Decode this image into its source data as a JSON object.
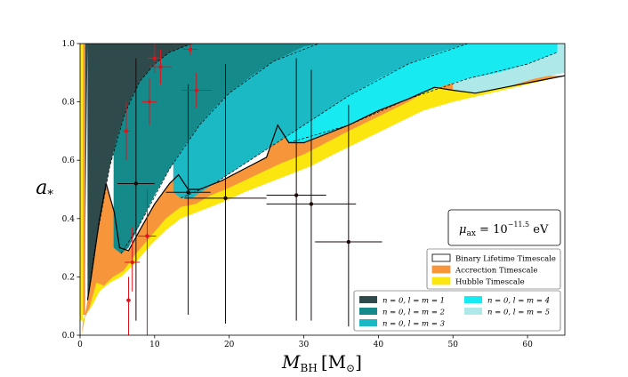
{
  "chart_data": {
    "type": "area",
    "title": "",
    "xlabel": "M_BH [M_⊙]",
    "xlabel_main": "M",
    "xlabel_sub": "BH",
    "xlabel_unit": "[M",
    "xlabel_unit_sub": "⊙",
    "xlabel_unit_close": "]",
    "ylabel": "a_*",
    "ylabel_main": "a",
    "ylabel_sub": "*",
    "xlim": [
      0,
      65
    ],
    "ylim": [
      0,
      1.0
    ],
    "xticks": [
      "0",
      "10",
      "20",
      "30",
      "40",
      "50",
      "60"
    ],
    "yticks": [
      "0.0",
      "0.2",
      "0.4",
      "0.6",
      "0.8",
      "1.0"
    ],
    "annotation": {
      "prefix": "μ",
      "sub": "ax",
      "mid": " = 10",
      "sup": "−11.5",
      "suffix": " eV"
    },
    "timescale_legend": [
      {
        "label": "Binary Lifetime Timescale",
        "color": "#ffffff"
      },
      {
        "label": "Accrection Timescale",
        "color": "#f7953b"
      },
      {
        "label": "Hubble Timescale",
        "color": "#fbe60f"
      }
    ],
    "mode_legend": [
      {
        "label": "n = 0,  l = m = 1",
        "color": "#2e4a4a"
      },
      {
        "label": "n = 0,  l = m = 2",
        "color": "#148a8a"
      },
      {
        "label": "n = 0,  l = m = 3",
        "color": "#1ab9c4"
      },
      {
        "label": "n = 0,  l = m = 4",
        "color": "#18eaf2"
      },
      {
        "label": "n = 0,  l = m = 5",
        "color": "#aee8e8"
      }
    ],
    "bands": [
      {
        "name": "l=m=1",
        "color": "#2e4a4a",
        "left_x": [
          [
            0.0,
            0.05
          ],
          [
            0.6,
            1.0
          ]
        ],
        "boundary": [
          [
            1.0,
            0.12
          ],
          [
            2.0,
            0.3
          ],
          [
            3,
            0.45
          ],
          [
            4,
            0.58
          ],
          [
            5,
            0.68
          ],
          [
            6,
            0.76
          ],
          [
            7,
            0.82
          ],
          [
            8,
            0.87
          ],
          [
            10,
            0.93
          ],
          [
            12,
            0.97
          ],
          [
            14,
            0.99
          ],
          [
            15,
            1.0
          ]
        ]
      },
      {
        "name": "l=m=2",
        "color": "#148a8a",
        "boundary": [
          [
            4.5,
            0.3
          ],
          [
            5.5,
            0.28
          ],
          [
            6.5,
            0.3
          ],
          [
            8,
            0.38
          ],
          [
            10,
            0.48
          ],
          [
            12,
            0.57
          ],
          [
            14,
            0.65
          ],
          [
            16,
            0.72
          ],
          [
            18,
            0.78
          ],
          [
            20,
            0.83
          ],
          [
            23,
            0.89
          ],
          [
            26,
            0.94
          ],
          [
            30,
            0.99
          ],
          [
            32,
            1.0
          ]
        ]
      },
      {
        "name": "l=m=3",
        "color": "#1ab9c4",
        "boundary": [
          [
            12.5,
            0.49
          ],
          [
            13.5,
            0.47
          ],
          [
            15,
            0.47
          ],
          [
            18,
            0.52
          ],
          [
            21,
            0.57
          ],
          [
            24,
            0.62
          ],
          [
            27,
            0.67
          ],
          [
            30,
            0.72
          ],
          [
            33,
            0.77
          ],
          [
            36,
            0.82
          ],
          [
            40,
            0.88
          ],
          [
            44,
            0.93
          ],
          [
            48,
            0.97
          ],
          [
            52,
            1.0
          ]
        ]
      },
      {
        "name": "l=m=4",
        "color": "#18eaf2",
        "boundary": [
          [
            26.5,
            0.7
          ],
          [
            28,
            0.66
          ],
          [
            30,
            0.66
          ],
          [
            33,
            0.69
          ],
          [
            36,
            0.72
          ],
          [
            40,
            0.77
          ],
          [
            44,
            0.81
          ],
          [
            48,
            0.85
          ],
          [
            52,
            0.88
          ],
          [
            56,
            0.9
          ],
          [
            60,
            0.93
          ],
          [
            63,
            0.96
          ],
          [
            64,
            0.97
          ]
        ]
      },
      {
        "name": "l=m=5",
        "color": "#aee8e8",
        "boundary": [
          [
            50,
            0.84
          ],
          [
            53,
            0.83
          ],
          [
            57,
            0.85
          ],
          [
            61,
            0.88
          ],
          [
            65,
            0.9
          ]
        ]
      }
    ],
    "solid_envelope": [
      [
        1.0,
        0.12
      ],
      [
        1.5,
        0.2
      ],
      [
        2.5,
        0.38
      ],
      [
        3.5,
        0.52
      ],
      [
        4.6,
        0.42
      ],
      [
        5.3,
        0.3
      ],
      [
        6.5,
        0.29
      ],
      [
        8,
        0.36
      ],
      [
        10,
        0.45
      ],
      [
        12,
        0.52
      ],
      [
        13.2,
        0.55
      ],
      [
        14.5,
        0.5
      ],
      [
        16,
        0.5
      ],
      [
        19,
        0.53
      ],
      [
        22,
        0.57
      ],
      [
        25,
        0.61
      ],
      [
        26.5,
        0.72
      ],
      [
        28,
        0.66
      ],
      [
        30,
        0.66
      ],
      [
        33,
        0.69
      ],
      [
        36,
        0.72
      ],
      [
        40,
        0.77
      ],
      [
        44,
        0.81
      ],
      [
        47.5,
        0.85
      ],
      [
        50,
        0.84
      ],
      [
        53,
        0.83
      ],
      [
        57,
        0.85
      ],
      [
        61,
        0.87
      ],
      [
        65,
        0.89
      ]
    ],
    "dashed_curves": [
      [
        [
          1.0,
          0.12
        ],
        [
          2,
          0.3
        ],
        [
          4,
          0.58
        ],
        [
          6,
          0.76
        ],
        [
          8,
          0.87
        ],
        [
          10,
          0.93
        ],
        [
          12,
          0.97
        ],
        [
          15,
          1.0
        ]
      ],
      [
        [
          5.5,
          0.28
        ],
        [
          8,
          0.38
        ],
        [
          12,
          0.57
        ],
        [
          16,
          0.72
        ],
        [
          20,
          0.83
        ],
        [
          26,
          0.94
        ],
        [
          32,
          1.0
        ]
      ],
      [
        [
          13.5,
          0.47
        ],
        [
          18,
          0.52
        ],
        [
          24,
          0.62
        ],
        [
          30,
          0.72
        ],
        [
          36,
          0.82
        ],
        [
          44,
          0.93
        ],
        [
          52,
          1.0
        ]
      ],
      [
        [
          28,
          0.66
        ],
        [
          36,
          0.72
        ],
        [
          44,
          0.81
        ],
        [
          52,
          0.88
        ],
        [
          60,
          0.93
        ],
        [
          64,
          0.97
        ]
      ]
    ],
    "accretion_lower": [
      [
        0.2,
        0.0
      ],
      [
        0.4,
        0.05
      ],
      [
        1.2,
        0.09
      ],
      [
        2.2,
        0.18
      ],
      [
        3.2,
        0.17
      ],
      [
        4.4,
        0.2
      ],
      [
        5.8,
        0.22
      ],
      [
        7.5,
        0.28
      ],
      [
        9.5,
        0.34
      ],
      [
        11.5,
        0.4
      ],
      [
        13.5,
        0.44
      ],
      [
        15.5,
        0.45
      ],
      [
        17.5,
        0.48
      ],
      [
        19.5,
        0.5
      ],
      [
        22,
        0.53
      ],
      [
        24.5,
        0.56
      ],
      [
        27,
        0.59
      ],
      [
        30,
        0.62
      ],
      [
        33,
        0.66
      ],
      [
        36,
        0.7
      ],
      [
        40,
        0.75
      ],
      [
        44,
        0.8
      ],
      [
        48,
        0.86
      ],
      [
        52,
        0.89
      ]
    ],
    "hubble_lower": [
      [
        0.3,
        0.0
      ],
      [
        0.5,
        0.06
      ],
      [
        1.6,
        0.1
      ],
      [
        2.6,
        0.15
      ],
      [
        4,
        0.18
      ],
      [
        5.5,
        0.2
      ],
      [
        7.5,
        0.25
      ],
      [
        9.5,
        0.31
      ],
      [
        11.5,
        0.36
      ],
      [
        13.5,
        0.4
      ],
      [
        15.5,
        0.42
      ],
      [
        17.5,
        0.44
      ],
      [
        19.5,
        0.46
      ],
      [
        22,
        0.49
      ],
      [
        25,
        0.52
      ],
      [
        28,
        0.55
      ],
      [
        31,
        0.58
      ],
      [
        34,
        0.62
      ],
      [
        38,
        0.67
      ],
      [
        42,
        0.72
      ],
      [
        46,
        0.77
      ],
      [
        50,
        0.8
      ]
    ],
    "black_points": [
      {
        "x": 7.5,
        "y": 0.52,
        "xerr": [
          2.5,
          2.5
        ],
        "yerr": [
          0.47,
          0.43
        ]
      },
      {
        "x": 14.5,
        "y": 0.49,
        "xerr": [
          3.0,
          3.0
        ],
        "yerr": [
          0.42,
          0.37
        ]
      },
      {
        "x": 19.5,
        "y": 0.47,
        "xerr": [
          5.5,
          5.5
        ],
        "yerr": [
          0.43,
          0.46
        ]
      },
      {
        "x": 29,
        "y": 0.48,
        "xerr": [
          4.0,
          4.0
        ],
        "yerr": [
          0.43,
          0.47
        ]
      },
      {
        "x": 31,
        "y": 0.45,
        "xerr": [
          6.0,
          6.0
        ],
        "yerr": [
          0.4,
          0.46
        ]
      },
      {
        "x": 36,
        "y": 0.32,
        "xerr": [
          4.5,
          4.5
        ],
        "yerr": [
          0.29,
          0.47
        ]
      }
    ],
    "red_points": [
      {
        "x": 6.5,
        "y": 0.12,
        "xerr": [
          0.3,
          0.3
        ],
        "yerr": [
          0.12,
          0.08
        ]
      },
      {
        "x": 7.0,
        "y": 0.25,
        "xerr": [
          1.0,
          1.0
        ],
        "yerr": [
          0.1,
          0.12
        ]
      },
      {
        "x": 9.0,
        "y": 0.34,
        "xerr": [
          1.2,
          1.2
        ],
        "yerr": [
          0.34,
          0.16
        ]
      },
      {
        "x": 6.2,
        "y": 0.7,
        "xerr": [
          0.5,
          0.5
        ],
        "yerr": [
          0.1,
          0.1
        ]
      },
      {
        "x": 9.3,
        "y": 0.8,
        "xerr": [
          1.0,
          1.0
        ],
        "yerr": [
          0.08,
          0.08
        ]
      },
      {
        "x": 10.0,
        "y": 0.95,
        "xerr": [
          1.0,
          1.0
        ],
        "yerr": [
          0.05,
          0.05
        ]
      },
      {
        "x": 10.8,
        "y": 0.92,
        "xerr": [
          1.5,
          1.5
        ],
        "yerr": [
          0.06,
          0.06
        ]
      },
      {
        "x": 14.8,
        "y": 0.98,
        "xerr": [
          1.0,
          1.0
        ],
        "yerr": [
          0.02,
          0.02
        ]
      },
      {
        "x": 15.6,
        "y": 0.84,
        "xerr": [
          2.0,
          2.0
        ],
        "yerr": [
          0.06,
          0.06
        ]
      }
    ]
  }
}
